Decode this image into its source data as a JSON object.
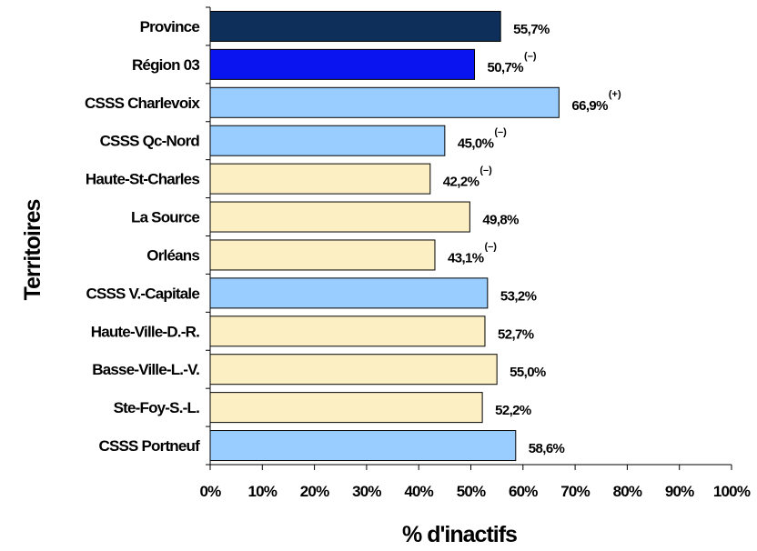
{
  "chart_data": {
    "type": "bar",
    "orientation": "horizontal",
    "ylabel": "Territoires",
    "xlabel": "% d'inactifs",
    "xlim": [
      0,
      100
    ],
    "x_ticks": [
      "0%",
      "10%",
      "20%",
      "30%",
      "40%",
      "50%",
      "60%",
      "70%",
      "80%",
      "90%",
      "100%"
    ],
    "grid": false,
    "legend": "none",
    "categories": [
      "Province",
      "Région 03",
      "CSSS Charlevoix",
      "CSSS Qc-Nord",
      "Haute-St-Charles",
      "La Source",
      "Orléans",
      "CSSS V.-Capitale",
      "Haute-Ville-D.-R.",
      "Basse-Ville-L.-V.",
      "Ste-Foy-S.-L.",
      "CSSS Portneuf"
    ],
    "values": [
      55.7,
      50.7,
      66.9,
      45.0,
      42.2,
      49.8,
      43.1,
      53.2,
      52.7,
      55.0,
      52.2,
      58.6
    ],
    "value_labels": [
      "55,7%",
      "50,7%",
      "66,9%",
      "45,0%",
      "42,2%",
      "49,8%",
      "43,1%",
      "53,2%",
      "52,7%",
      "55,0%",
      "52,2%",
      "58,6%"
    ],
    "significance": [
      "",
      "(–)",
      "(+)",
      "(–)",
      "(–)",
      "",
      "(–)",
      "",
      "",
      "",
      "",
      ""
    ],
    "bar_colors": [
      "#0d2f5a",
      "#0a14f0",
      "#99ccff",
      "#99ccff",
      "#fcefc4",
      "#fcefc4",
      "#fcefc4",
      "#99ccff",
      "#fcefc4",
      "#fcefc4",
      "#fcefc4",
      "#99ccff"
    ]
  }
}
